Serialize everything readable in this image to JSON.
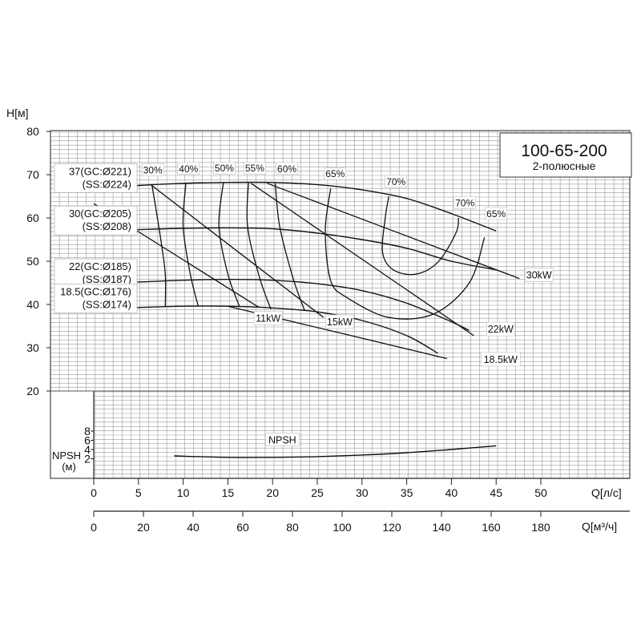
{
  "chart_data": {
    "type": "line",
    "title": "100-65-200",
    "subtitle": "2-полюсные",
    "ylabel": "H[м]",
    "xlabel_ls": "Q[л/с]",
    "xlabel_m3h": "Q[м³/ч]",
    "npsh_label": "NPSH",
    "npsh_unit": "(м)",
    "grid": true,
    "ylim": [
      18,
      80
    ],
    "xlim_ls": [
      -5,
      55
    ],
    "y_ticks": [
      "20",
      "30",
      "40",
      "50",
      "60",
      "70",
      "80"
    ],
    "npsh_ticks": [
      "2",
      "4",
      "6",
      "8"
    ],
    "x_ticks_ls": [
      "0",
      "5",
      "10",
      "15",
      "20",
      "25",
      "30",
      "35",
      "40",
      "45",
      "50"
    ],
    "x_ticks_m3h": [
      "0",
      "20",
      "40",
      "60",
      "80",
      "100",
      "120",
      "140",
      "160",
      "180"
    ],
    "head_curves": [
      {
        "label_line1": "37(GC:Ø221)",
        "label_line2": "(SS:Ø224)",
        "points": [
          [
            0,
            66.8
          ],
          [
            5,
            67.5
          ],
          [
            10,
            68
          ],
          [
            15,
            68.2
          ],
          [
            20,
            68.2
          ],
          [
            25,
            67.7
          ],
          [
            30,
            66.5
          ],
          [
            35,
            64.5
          ],
          [
            40,
            61
          ],
          [
            45,
            57
          ]
        ]
      },
      {
        "label_line1": "30(GC:Ø205)",
        "label_line2": "(SS:Ø208)",
        "points": [
          [
            0,
            57
          ],
          [
            5,
            57.3
          ],
          [
            10,
            57.6
          ],
          [
            15,
            57.7
          ],
          [
            20,
            57.5
          ],
          [
            25,
            56.5
          ],
          [
            30,
            55
          ],
          [
            35,
            53
          ],
          [
            40,
            50
          ],
          [
            45,
            48
          ]
        ]
      },
      {
        "label_line1": "22(GC:Ø185)",
        "label_line2": "(SS:Ø187)",
        "points": [
          [
            0,
            44.8
          ],
          [
            5,
            45.2
          ],
          [
            10,
            45.6
          ],
          [
            15,
            45.8
          ],
          [
            20,
            45.6
          ],
          [
            25,
            44.8
          ],
          [
            30,
            43.2
          ],
          [
            35,
            40.3
          ],
          [
            40,
            36
          ],
          [
            42,
            34
          ]
        ]
      },
      {
        "label_line1": "18.5(GC:Ø176)",
        "label_line2": "(SS:Ø174)",
        "points": [
          [
            0,
            39
          ],
          [
            5,
            39.3
          ],
          [
            10,
            39.6
          ],
          [
            15,
            39.6
          ],
          [
            20,
            39.2
          ],
          [
            25,
            38.3
          ],
          [
            30,
            36.3
          ],
          [
            35,
            32.8
          ],
          [
            38.5,
            28.7
          ]
        ]
      }
    ],
    "efficiency_curves": [
      {
        "label": "30%",
        "points": [
          [
            6.5,
            67.8
          ],
          [
            7.5,
            55
          ],
          [
            8,
            47
          ],
          [
            8,
            39.5
          ]
        ]
      },
      {
        "label": "40%",
        "points": [
          [
            10.3,
            68
          ],
          [
            10,
            58
          ],
          [
            10.8,
            47
          ],
          [
            11.7,
            39.5
          ]
        ]
      },
      {
        "label": "50%",
        "points": [
          [
            14.5,
            68.2
          ],
          [
            14,
            58
          ],
          [
            15,
            47
          ],
          [
            16.3,
            39.5
          ]
        ]
      },
      {
        "label": "55%",
        "points": [
          [
            17.3,
            68.2
          ],
          [
            17.2,
            58
          ],
          [
            18.5,
            46.5
          ],
          [
            19.8,
            38.9
          ]
        ]
      },
      {
        "label": "60%",
        "points": [
          [
            20.3,
            68
          ],
          [
            20.8,
            58
          ],
          [
            22.3,
            46
          ],
          [
            23.6,
            38.5
          ]
        ]
      },
      {
        "label": "65%",
        "points": [
          [
            26.5,
            66.8
          ],
          [
            25.9,
            57
          ],
          [
            26.5,
            45.5
          ],
          [
            28.4,
            41.5
          ],
          [
            33,
            37
          ],
          [
            38,
            37.8
          ],
          [
            42,
            45
          ],
          [
            43.7,
            55.5
          ]
        ]
      },
      {
        "label": "70%",
        "points": [
          [
            33,
            65
          ],
          [
            32.6,
            60
          ],
          [
            32.3,
            52
          ],
          [
            33.5,
            48
          ],
          [
            36,
            47
          ],
          [
            38.5,
            49.8
          ],
          [
            40.5,
            56.5
          ],
          [
            40.8,
            60
          ]
        ]
      }
    ],
    "efficiency_labels": [
      {
        "text": "30%",
        "x": 6.6,
        "y": 70.3
      },
      {
        "text": "40%",
        "x": 10.6,
        "y": 70.6
      },
      {
        "text": "50%",
        "x": 14.6,
        "y": 70.7
      },
      {
        "text": "55%",
        "x": 18,
        "y": 70.7
      },
      {
        "text": "60%",
        "x": 21.6,
        "y": 70.6
      },
      {
        "text": "65%",
        "x": 27,
        "y": 69.4
      },
      {
        "text": "70%",
        "x": 33.8,
        "y": 67.6
      },
      {
        "text": "70%",
        "x": 41.5,
        "y": 62.7
      },
      {
        "text": "65%",
        "x": 45,
        "y": 60.2
      }
    ],
    "power_curves": [
      {
        "label": "11kW",
        "points": [
          [
            0,
            63.3
          ],
          [
            18.5,
            39.3
          ]
        ],
        "label_at": [
          19.5,
          36
        ]
      },
      {
        "label": "15kW",
        "points": [
          [
            6.3,
            67.8
          ],
          [
            25.7,
            37
          ]
        ],
        "label_at": [
          27.5,
          35.2
        ]
      },
      {
        "label": "22kW",
        "points": [
          [
            17.6,
            68
          ],
          [
            42.5,
            32.8
          ]
        ],
        "label_at": [
          45.5,
          33.5
        ]
      },
      {
        "label": "30kW",
        "points": [
          [
            19.4,
            68
          ],
          [
            47.6,
            46
          ]
        ],
        "label_at": [
          49.8,
          46
        ]
      },
      {
        "label": "18.5kW",
        "points": [
          [
            15,
            39.6
          ],
          [
            39.5,
            27.5
          ]
        ],
        "label_at": [
          45.5,
          26.5
        ]
      }
    ],
    "npsh_curve": {
      "label": "NPSH",
      "points": [
        [
          9,
          2.6
        ],
        [
          15,
          2.3
        ],
        [
          20,
          2.3
        ],
        [
          25,
          2.45
        ],
        [
          30,
          2.8
        ],
        [
          35,
          3.3
        ],
        [
          40,
          4
        ],
        [
          45,
          4.8
        ]
      ],
      "label_at": [
        21,
        5.5
      ]
    }
  }
}
